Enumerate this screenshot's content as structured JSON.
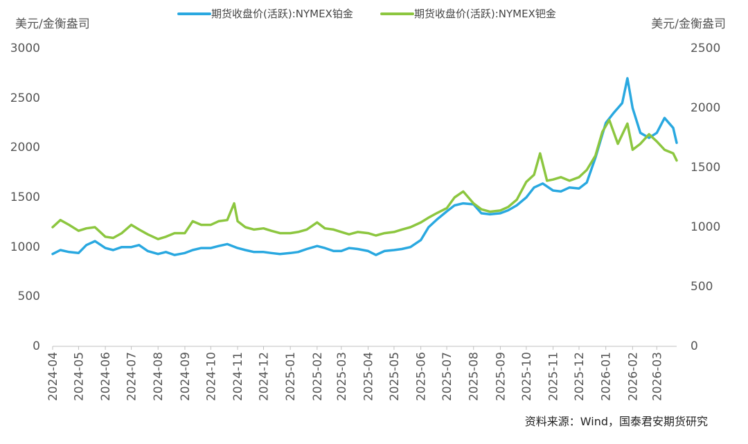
{
  "chart_data": {
    "type": "line",
    "ylabel_left": "美元/金衡盎司",
    "ylabel_right": "美元/金衡盎司",
    "ylim_left": [
      0,
      3000
    ],
    "ylim_right": [
      0,
      2500
    ],
    "yticks_left": [
      "0",
      "500",
      "1000",
      "1500",
      "2000",
      "2500",
      "3000"
    ],
    "yticks_right": [
      "0",
      "500",
      "1000",
      "1500",
      "2000",
      "2500"
    ],
    "xticks": [
      "2024-04",
      "2024-05",
      "2024-06",
      "2024-07",
      "2024-08",
      "2024-09",
      "2024-10",
      "2024-11",
      "2024-12",
      "2025-01",
      "2025-02",
      "2025-03",
      "2025-04",
      "2025-05",
      "2025-06",
      "2025-07",
      "2025-08",
      "2025-09",
      "2025-10",
      "2025-11",
      "2025-12",
      "2026-01",
      "2026-02",
      "2026-03"
    ],
    "xlim": [
      "2024-04-01",
      "2026-03-24"
    ],
    "grid": false,
    "legend_position": "top",
    "source": "资料来源：Wind，国泰君安期货研究",
    "series": [
      {
        "name": "期货收盘价(活跃):NYMEX铂金",
        "axis": "left",
        "color": "#29A8E0",
        "x": [
          "2024-04-01",
          "2024-04-10",
          "2024-04-20",
          "2024-05-01",
          "2024-05-10",
          "2024-05-20",
          "2024-06-01",
          "2024-06-10",
          "2024-06-20",
          "2024-07-01",
          "2024-07-10",
          "2024-07-20",
          "2024-08-01",
          "2024-08-10",
          "2024-08-20",
          "2024-09-01",
          "2024-09-10",
          "2024-09-20",
          "2024-10-01",
          "2024-10-10",
          "2024-10-20",
          "2024-11-01",
          "2024-11-10",
          "2024-11-20",
          "2024-12-01",
          "2024-12-10",
          "2024-12-20",
          "2025-01-01",
          "2025-01-10",
          "2025-01-20",
          "2025-02-01",
          "2025-02-10",
          "2025-02-20",
          "2025-03-01",
          "2025-03-10",
          "2025-03-20",
          "2025-04-01",
          "2025-04-10",
          "2025-04-20",
          "2025-05-01",
          "2025-05-10",
          "2025-05-20",
          "2025-06-01",
          "2025-06-10",
          "2025-06-20",
          "2025-07-01",
          "2025-07-10",
          "2025-07-20",
          "2025-08-01",
          "2025-08-10",
          "2025-08-20",
          "2025-09-01",
          "2025-09-10",
          "2025-09-20",
          "2025-10-01",
          "2025-10-10",
          "2025-10-20",
          "2025-11-01",
          "2025-11-10",
          "2025-11-20",
          "2025-12-01",
          "2025-12-10",
          "2025-12-20",
          "2026-01-01",
          "2026-01-10",
          "2026-01-20",
          "2026-01-26",
          "2026-02-01",
          "2026-02-10",
          "2026-02-20",
          "2026-03-01",
          "2026-03-10",
          "2026-03-20",
          "2026-03-24"
        ],
        "values": [
          930,
          970,
          950,
          940,
          1020,
          1060,
          990,
          970,
          1000,
          1000,
          1020,
          960,
          930,
          950,
          920,
          940,
          970,
          990,
          990,
          1010,
          1030,
          990,
          970,
          950,
          950,
          940,
          930,
          940,
          950,
          980,
          1010,
          990,
          960,
          960,
          990,
          980,
          960,
          920,
          960,
          970,
          980,
          1000,
          1070,
          1200,
          1280,
          1360,
          1420,
          1440,
          1430,
          1340,
          1330,
          1340,
          1370,
          1420,
          1500,
          1600,
          1640,
          1570,
          1560,
          1600,
          1590,
          1650,
          1900,
          2250,
          2350,
          2450,
          2700,
          2400,
          2150,
          2100,
          2150,
          2300,
          2200,
          2050
        ]
      },
      {
        "name": "期货收盘价(活跃):NYMEX钯金",
        "axis": "right",
        "color": "#8CC63F",
        "x": [
          "2024-04-01",
          "2024-04-10",
          "2024-04-20",
          "2024-05-01",
          "2024-05-10",
          "2024-05-20",
          "2024-06-01",
          "2024-06-10",
          "2024-06-20",
          "2024-07-01",
          "2024-07-10",
          "2024-07-20",
          "2024-08-01",
          "2024-08-10",
          "2024-08-20",
          "2024-09-01",
          "2024-09-10",
          "2024-09-20",
          "2024-10-01",
          "2024-10-10",
          "2024-10-20",
          "2024-10-28",
          "2024-11-01",
          "2024-11-10",
          "2024-11-20",
          "2024-12-01",
          "2024-12-10",
          "2024-12-20",
          "2025-01-01",
          "2025-01-10",
          "2025-01-20",
          "2025-02-01",
          "2025-02-10",
          "2025-02-20",
          "2025-03-01",
          "2025-03-10",
          "2025-03-20",
          "2025-04-01",
          "2025-04-10",
          "2025-04-20",
          "2025-05-01",
          "2025-05-10",
          "2025-05-20",
          "2025-06-01",
          "2025-06-10",
          "2025-06-20",
          "2025-07-01",
          "2025-07-10",
          "2025-07-20",
          "2025-08-01",
          "2025-08-10",
          "2025-08-20",
          "2025-09-01",
          "2025-09-10",
          "2025-09-20",
          "2025-10-01",
          "2025-10-10",
          "2025-10-17",
          "2025-10-25",
          "2025-11-01",
          "2025-11-10",
          "2025-11-20",
          "2025-12-01",
          "2025-12-10",
          "2025-12-20",
          "2025-12-28",
          "2026-01-05",
          "2026-01-15",
          "2026-01-26",
          "2026-02-01",
          "2026-02-10",
          "2026-02-20",
          "2026-03-01",
          "2026-03-10",
          "2026-03-20",
          "2026-03-24"
        ],
        "values": [
          1000,
          1060,
          1020,
          970,
          990,
          1000,
          920,
          910,
          950,
          1020,
          980,
          940,
          900,
          920,
          950,
          950,
          1050,
          1020,
          1020,
          1050,
          1060,
          1200,
          1050,
          1000,
          980,
          990,
          970,
          950,
          950,
          960,
          980,
          1040,
          990,
          980,
          960,
          940,
          960,
          950,
          930,
          950,
          960,
          980,
          1000,
          1040,
          1080,
          1120,
          1160,
          1250,
          1300,
          1200,
          1150,
          1130,
          1140,
          1170,
          1230,
          1380,
          1440,
          1620,
          1390,
          1400,
          1420,
          1390,
          1420,
          1480,
          1600,
          1800,
          1900,
          1700,
          1870,
          1650,
          1700,
          1780,
          1720,
          1650,
          1620,
          1560
        ]
      }
    ]
  }
}
